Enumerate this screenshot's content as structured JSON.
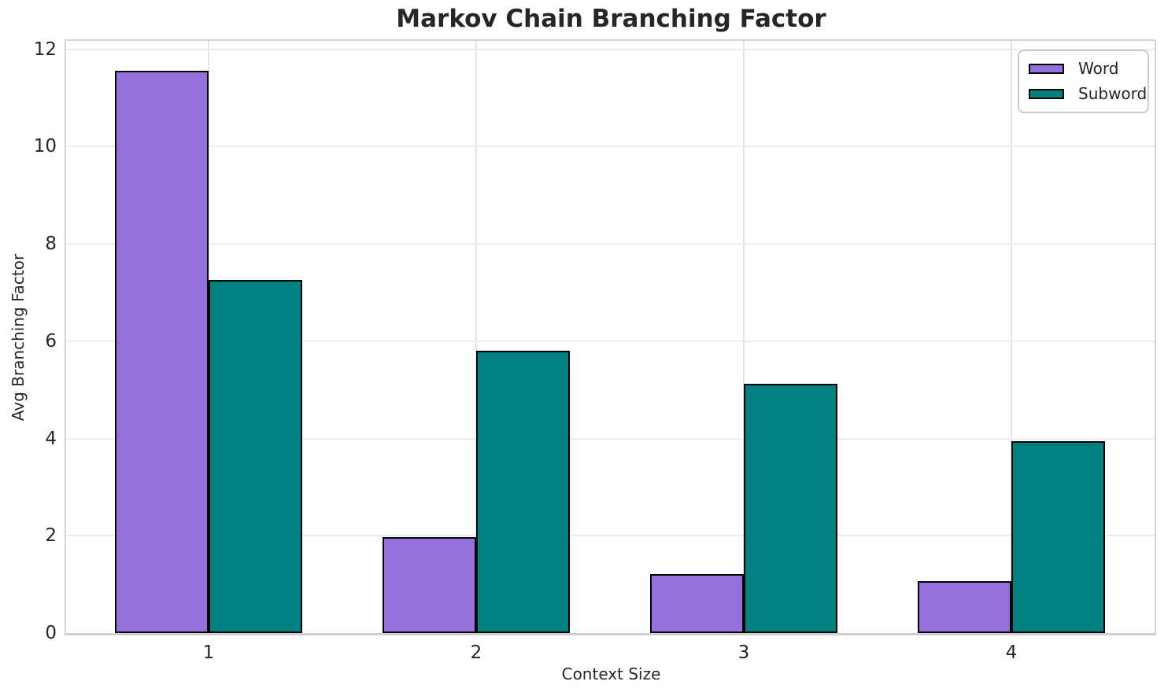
{
  "chart_data": {
    "type": "bar",
    "title": "Markov Chain Branching Factor",
    "xlabel": "Context Size",
    "ylabel": "Avg Branching Factor",
    "categories": [
      "1",
      "2",
      "3",
      "4"
    ],
    "series": [
      {
        "name": "Word",
        "color": "#9370DB",
        "values": [
          11.55,
          1.98,
          1.22,
          1.06
        ]
      },
      {
        "name": "Subword",
        "color": "#008080",
        "values": [
          7.25,
          5.8,
          5.13,
          3.95
        ]
      }
    ],
    "ylim": [
      0,
      12.17
    ],
    "yticks": [
      0,
      2,
      4,
      6,
      8,
      10,
      12
    ],
    "grid": true,
    "legend_position": "upper right",
    "bar_edge_color": "#000000",
    "background_color": "#ffffff",
    "grid_color": "#ececec",
    "text_color": "#262626"
  }
}
